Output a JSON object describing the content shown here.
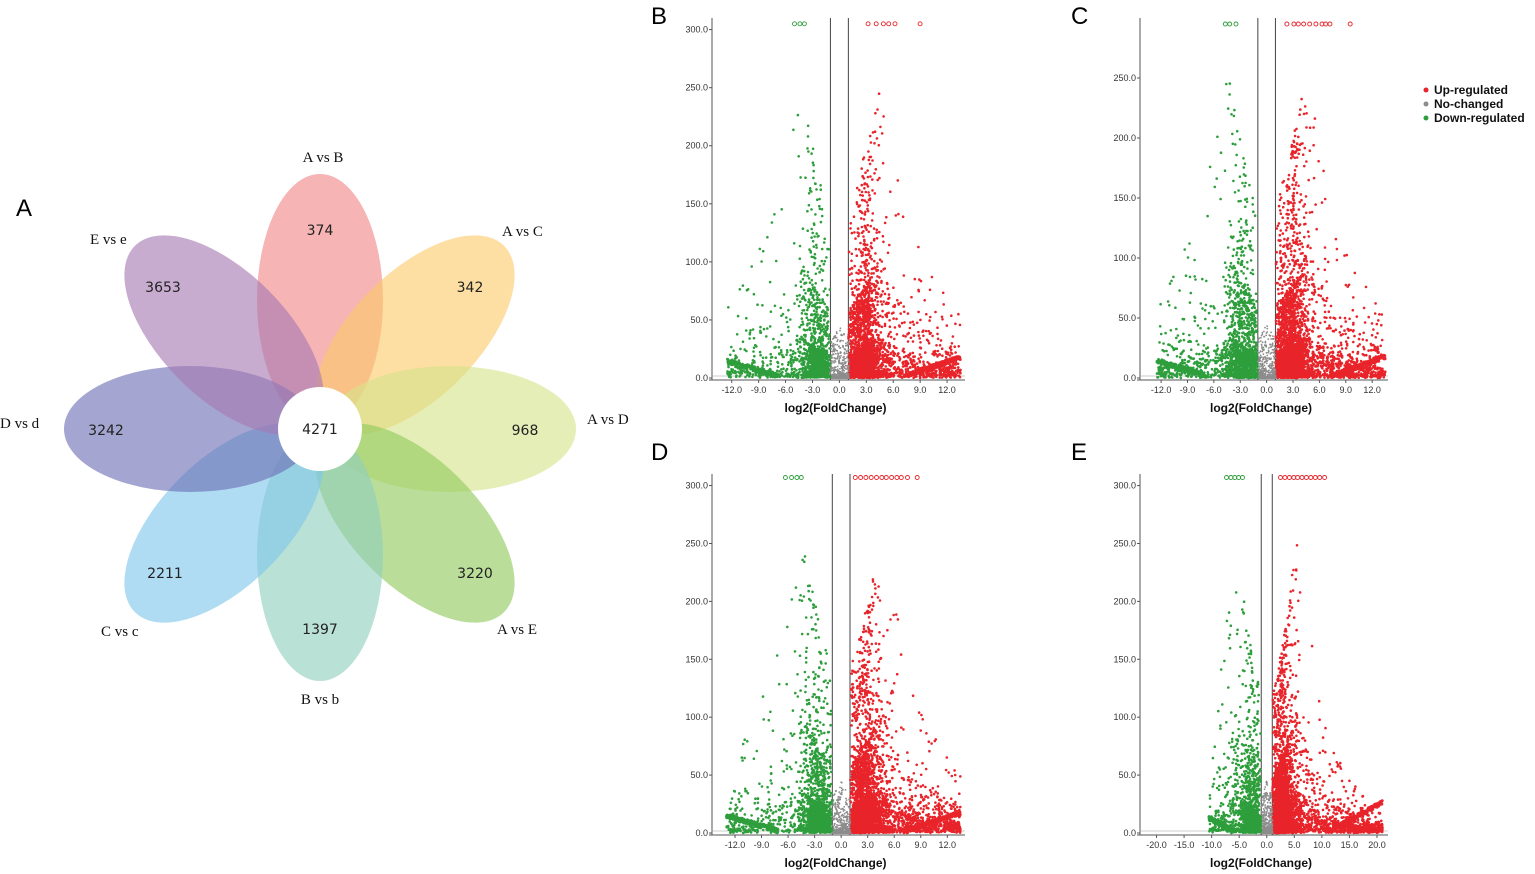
{
  "figure": {
    "panel_letters": {
      "A": "A",
      "B": "B",
      "C": "C",
      "D": "D",
      "E": "E"
    }
  },
  "colors": {
    "up": "#e8242a",
    "no": "#8c8c8c",
    "down": "#2e9e3c"
  },
  "venn": {
    "center_value": "4271",
    "petals": [
      {
        "label": "A vs B",
        "value": "374",
        "color": "#f08686"
      },
      {
        "label": "A vs C",
        "value": "342",
        "color": "#fbc96a"
      },
      {
        "label": "A vs D",
        "value": "968",
        "color": "#d6e38a"
      },
      {
        "label": "A vs E",
        "value": "3220",
        "color": "#8fc95c"
      },
      {
        "label": "B vs b",
        "value": "1397",
        "color": "#8fcfbd"
      },
      {
        "label": "C vs c",
        "value": "2211",
        "color": "#7ec6ec"
      },
      {
        "label": "D vs d",
        "value": "3242",
        "color": "#6c6db3"
      },
      {
        "label": "E vs e",
        "value": "3653",
        "color": "#a679b3"
      }
    ]
  },
  "legend": {
    "up": "Up-regulated",
    "no": "No-changed",
    "down": "Down-regulated"
  },
  "chart_data": [
    {
      "panel": "B",
      "type": "scatter",
      "title": "",
      "xlabel": "log2(FoldChange)",
      "ylabel": "",
      "xlim": [
        -14.2,
        14.0
      ],
      "ylim": [
        0,
        310
      ],
      "xticks": [
        "-12.0",
        "-9.0",
        "-6.0",
        "-3.0",
        "0.0",
        "3.0",
        "6.0",
        "9.0",
        "12.0"
      ],
      "xtick_values": [
        -12,
        -9,
        -6,
        -3,
        0,
        3,
        6,
        9,
        12
      ],
      "yticks": [
        "0.0",
        "50.0",
        "100.0",
        "150.0",
        "200.0",
        "250.0",
        "300.0"
      ],
      "ytick_values": [
        0,
        50,
        100,
        150,
        200,
        250,
        300
      ],
      "threshold_x": [
        -1,
        1
      ],
      "series": [
        {
          "name": "Up-regulated",
          "approx_points": 3200,
          "x_range": [
            1,
            13.5
          ],
          "capped_y": 305,
          "capped_x": [
            3.2,
            4.1,
            4.9,
            5.5,
            6.2,
            9.0
          ]
        },
        {
          "name": "No-changed",
          "approx_points": 500,
          "x_range": [
            -1,
            1
          ]
        },
        {
          "name": "Down-regulated",
          "approx_points": 1400,
          "x_range": [
            -12.5,
            -1
          ],
          "capped_y": 305,
          "capped_x": [
            -5.0,
            -4.4,
            -3.9
          ]
        }
      ]
    },
    {
      "panel": "C",
      "type": "scatter",
      "title": "",
      "xlabel": "log2(FoldChange)",
      "ylabel": "",
      "xlim": [
        -14.4,
        13.8
      ],
      "ylim": [
        0,
        300
      ],
      "xticks": [
        "-12.0",
        "-9.0",
        "-6.0",
        "-3.0",
        "0.0",
        "3.0",
        "6.0",
        "9.0",
        "12.0"
      ],
      "xtick_values": [
        -12,
        -9,
        -6,
        -3,
        0,
        3,
        6,
        9,
        12
      ],
      "yticks": [
        "0.0",
        "50.0",
        "100.0",
        "150.0",
        "200.0",
        "250.0"
      ],
      "ytick_values": [
        0,
        50,
        100,
        150,
        200,
        250
      ],
      "threshold_x": [
        -1,
        1
      ],
      "series": [
        {
          "name": "Up-regulated",
          "approx_points": 3800,
          "x_range": [
            1,
            13.5
          ],
          "capped_y": 295,
          "capped_x": [
            2.3,
            3.1,
            3.6,
            4.2,
            4.9,
            5.6,
            6.3,
            6.7,
            7.2,
            9.5
          ]
        },
        {
          "name": "No-changed",
          "approx_points": 500,
          "x_range": [
            -1,
            1
          ]
        },
        {
          "name": "Down-regulated",
          "approx_points": 1900,
          "x_range": [
            -12.5,
            -1
          ],
          "capped_y": 295,
          "capped_x": [
            -4.7,
            -4.2,
            -3.5
          ]
        }
      ]
    },
    {
      "panel": "D",
      "type": "scatter",
      "title": "",
      "xlabel": "log2(FoldChange)",
      "ylabel": "",
      "xlim": [
        -14.6,
        14.0
      ],
      "ylim": [
        0,
        310
      ],
      "xticks": [
        "-12.0",
        "-9.0",
        "-6.0",
        "-3.0",
        "0.0",
        "3.0",
        "6.0",
        "9.0",
        "12.0"
      ],
      "xtick_values": [
        -12,
        -9,
        -6,
        -3,
        0,
        3,
        6,
        9,
        12
      ],
      "yticks": [
        "0.0",
        "50.0",
        "100.0",
        "150.0",
        "200.0",
        "250.0",
        "300.0"
      ],
      "ytick_values": [
        0,
        50,
        100,
        150,
        200,
        250,
        300
      ],
      "threshold_x": [
        -1,
        1
      ],
      "series": [
        {
          "name": "Up-regulated",
          "approx_points": 4000,
          "x_range": [
            1,
            13.5
          ],
          "capped_y": 307,
          "capped_x": [
            1.6,
            2.2,
            2.8,
            3.4,
            4.0,
            4.6,
            5.1,
            5.7,
            6.3,
            6.8,
            7.5,
            8.6
          ]
        },
        {
          "name": "No-changed",
          "approx_points": 500,
          "x_range": [
            -1,
            1
          ]
        },
        {
          "name": "Down-regulated",
          "approx_points": 1700,
          "x_range": [
            -13,
            -1
          ],
          "capped_y": 307,
          "capped_x": [
            -6.3,
            -5.6,
            -5.0,
            -4.5
          ]
        }
      ]
    },
    {
      "panel": "E",
      "type": "scatter",
      "title": "",
      "xlabel": "log2(FoldChange)",
      "ylabel": "",
      "xlim": [
        -23.0,
        22.0
      ],
      "ylim": [
        0,
        310
      ],
      "xticks": [
        "-20.0",
        "-15.0",
        "-10.0",
        "-5.0",
        "0.0",
        "5.0",
        "10.0",
        "15.0",
        "20.0"
      ],
      "xtick_values": [
        -20,
        -15,
        -10,
        -5,
        0,
        5,
        10,
        15,
        20
      ],
      "yticks": [
        "0.0",
        "50.0",
        "100.0",
        "150.0",
        "200.0",
        "250.0",
        "300.0"
      ],
      "ytick_values": [
        0,
        50,
        100,
        150,
        200,
        250,
        300
      ],
      "threshold_x": [
        -1,
        1
      ],
      "series": [
        {
          "name": "Up-regulated",
          "approx_points": 4500,
          "x_range": [
            1,
            21
          ],
          "capped_y": 307,
          "capped_x": [
            2.5,
            3.3,
            4.1,
            4.9,
            5.6,
            6.4,
            7.2,
            8.0,
            8.8,
            9.6,
            10.5
          ]
        },
        {
          "name": "No-changed",
          "approx_points": 500,
          "x_range": [
            -1,
            1
          ]
        },
        {
          "name": "Down-regulated",
          "approx_points": 1500,
          "x_range": [
            -10.5,
            -1
          ],
          "capped_y": 307,
          "capped_x": [
            -7.3,
            -6.5,
            -5.8,
            -5.1,
            -4.4
          ]
        }
      ]
    }
  ]
}
